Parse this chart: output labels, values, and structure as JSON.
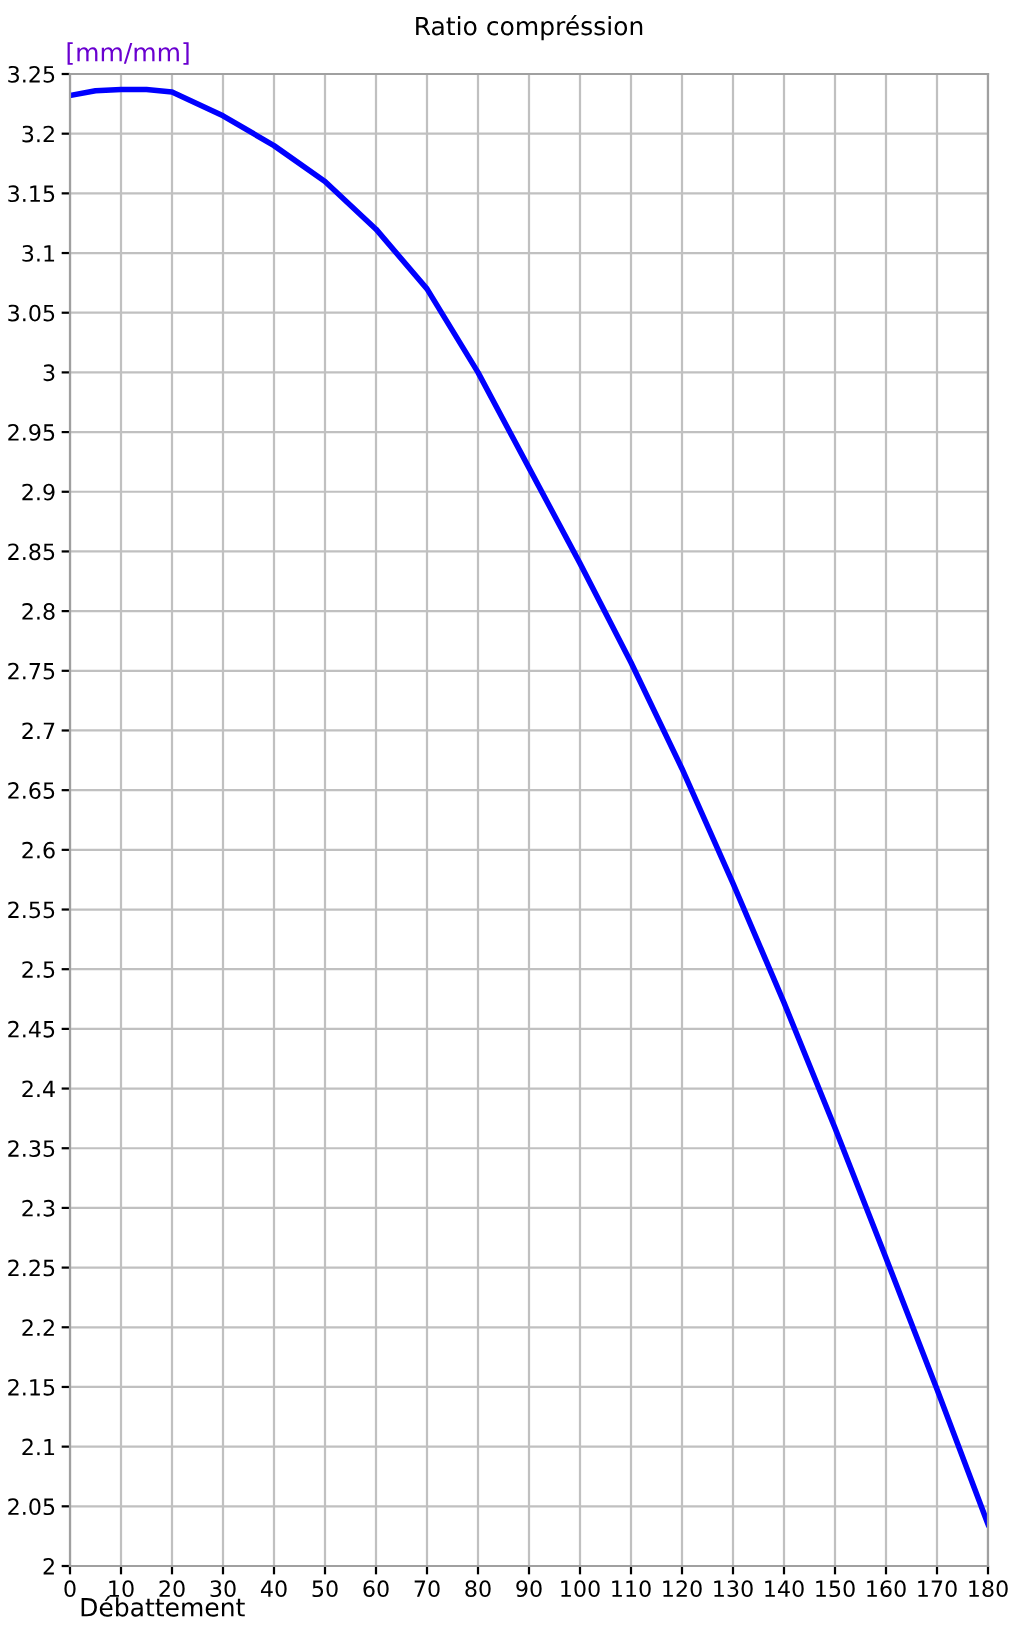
{
  "chart_data": {
    "type": "line",
    "title": "Ratio compréssion",
    "xlabel": "Débattement",
    "ylabel": "[mm/mm]",
    "x": [
      0,
      5,
      10,
      15,
      20,
      30,
      40,
      50,
      60,
      70,
      80,
      90,
      100,
      110,
      120,
      130,
      140,
      150,
      160,
      170,
      180
    ],
    "series": [
      {
        "color": "#0000ff",
        "values": [
          3.232,
          3.236,
          3.237,
          3.237,
          3.235,
          3.215,
          3.19,
          3.16,
          3.12,
          3.07,
          3.0,
          2.92,
          2.84,
          2.757,
          2.668,
          2.572,
          2.472,
          2.367,
          2.258,
          2.148,
          2.035
        ]
      }
    ],
    "xlim": [
      0,
      180
    ],
    "xticks": [
      0,
      10,
      20,
      30,
      40,
      50,
      60,
      70,
      80,
      90,
      100,
      110,
      120,
      130,
      140,
      150,
      160,
      170,
      180
    ],
    "ylim": [
      2,
      3.25
    ],
    "yticks": [
      2,
      2.05,
      2.1,
      2.15,
      2.2,
      2.25,
      2.3,
      2.35,
      2.4,
      2.45,
      2.5,
      2.55,
      2.6,
      2.65,
      2.7,
      2.75,
      2.8,
      2.85,
      2.9,
      2.95,
      3,
      3.05,
      3.1,
      3.15,
      3.2,
      3.25
    ],
    "grid": true,
    "marker": "none",
    "line_style": "solid"
  }
}
